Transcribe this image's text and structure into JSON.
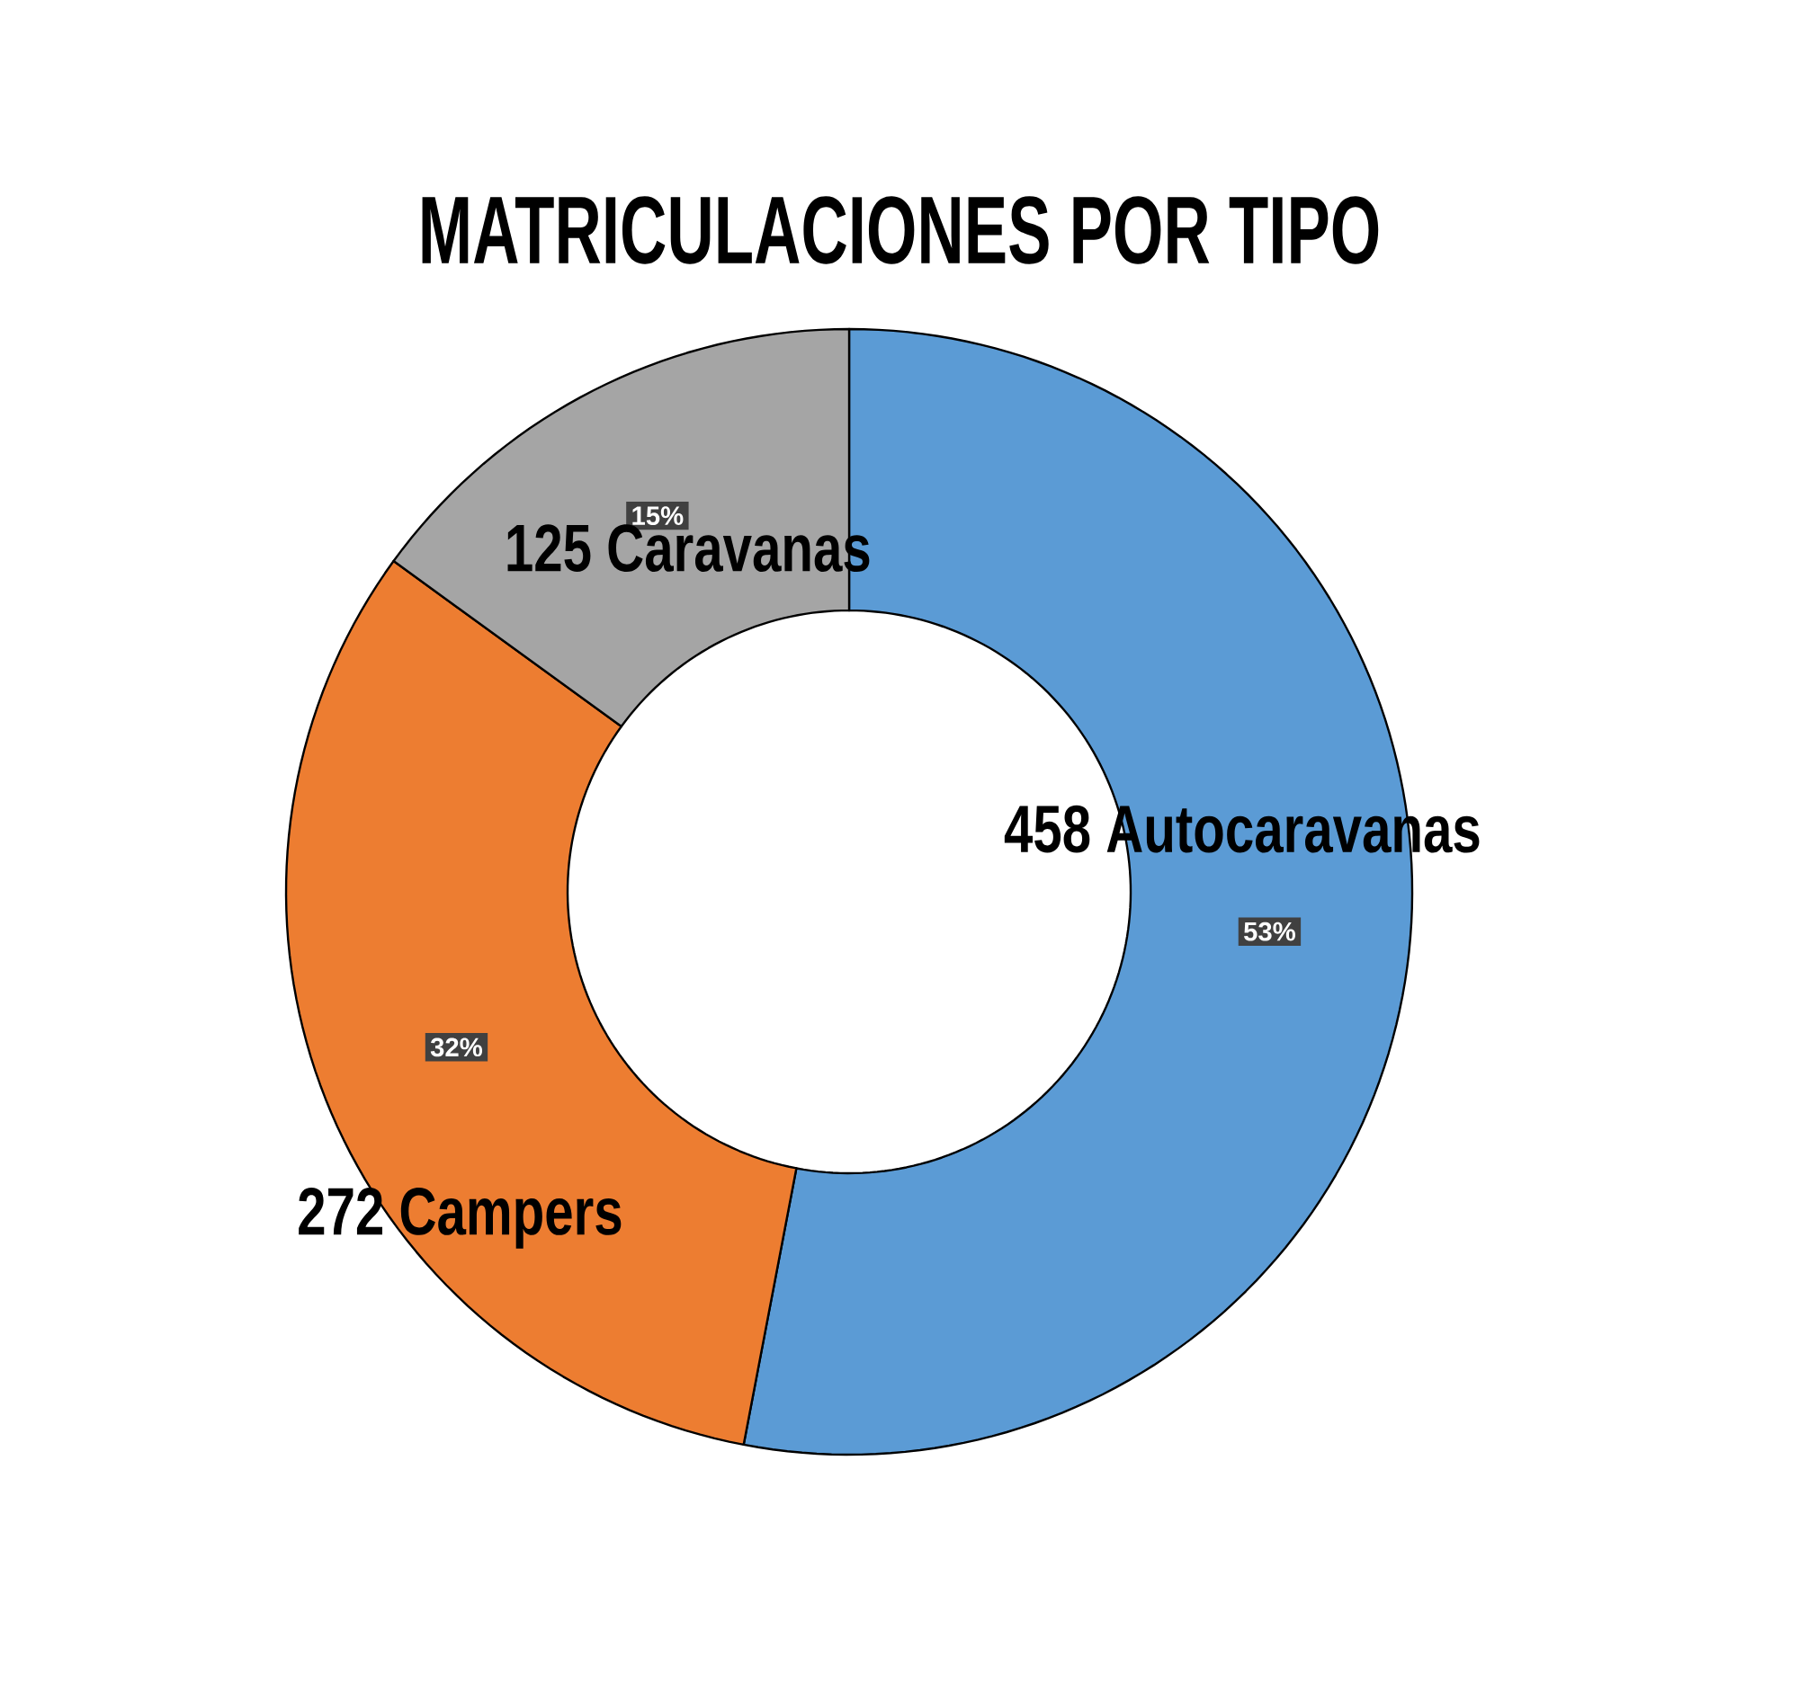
{
  "chart_data": {
    "type": "donut",
    "title": "MATRICULACIONES POR TIPO",
    "categories": [
      "458 Autocaravanas",
      "272 Campers",
      "125 Caravanas"
    ],
    "values": [
      53,
      32,
      15
    ],
    "colors": [
      "#5b9bd5",
      "#ed7d31",
      "#a5a5a5"
    ],
    "value_labels": [
      "53%",
      "32%",
      "15%"
    ]
  }
}
